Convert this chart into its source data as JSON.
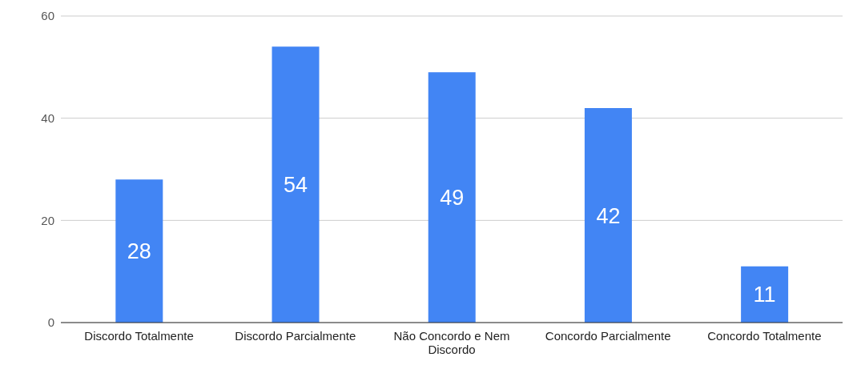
{
  "chart_data": {
    "type": "bar",
    "categories": [
      "Discordo Totalmente",
      "Discordo Parcialmente",
      "Não Concordo e Nem Discordo",
      "Concordo Parcialmente",
      "Concordo Totalmente"
    ],
    "values": [
      28,
      54,
      49,
      42,
      11
    ],
    "color": "#4285f4",
    "ylim": [
      0,
      60
    ],
    "yticks": [
      0,
      20,
      40,
      60
    ],
    "grid": "y",
    "data_labels": true,
    "legend": false
  }
}
